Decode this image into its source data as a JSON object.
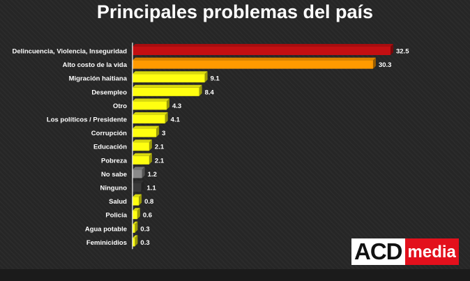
{
  "title": "Principales problemas del país",
  "logo": {
    "part1": "ACD",
    "part2": "media"
  },
  "colors": {
    "red": "#c40f12",
    "orange": "#ff9a00",
    "yellow": "#ffff10",
    "gray": "#8a8a8a",
    "dark": "#3a3a3a"
  },
  "chart_data": {
    "type": "bar",
    "orientation": "horizontal",
    "categories": [
      "Delincuencia, Violencia, Inseguridad",
      "Alto costo de la vida",
      "Migración haitiana",
      "Desempleo",
      "Otro",
      "Los políticos / Presidente",
      "Corrupción",
      "Educación",
      "Pobreza",
      "No sabe",
      "Ninguno",
      "Salud",
      "Policía",
      "Agua potable",
      "Feminicidios"
    ],
    "values": [
      32.5,
      30.3,
      9.1,
      8.4,
      4.3,
      4.1,
      3,
      2.1,
      2.1,
      1.2,
      1.1,
      0.8,
      0.6,
      0.3,
      0.3
    ],
    "value_labels": [
      "32.5",
      "30.3",
      "9.1",
      "8.4",
      "4.3",
      "4.1",
      "3",
      "2.1",
      "2.1",
      "1.2",
      "1.1",
      "0.8",
      "0.6",
      "0.3",
      "0.3"
    ],
    "bar_colors": [
      "red",
      "orange",
      "yellow",
      "yellow",
      "yellow",
      "yellow",
      "yellow",
      "yellow",
      "yellow",
      "gray",
      "dark",
      "yellow",
      "yellow",
      "yellow",
      "yellow"
    ],
    "xlim": [
      0,
      32.5
    ],
    "grid": false,
    "legend": "none"
  }
}
